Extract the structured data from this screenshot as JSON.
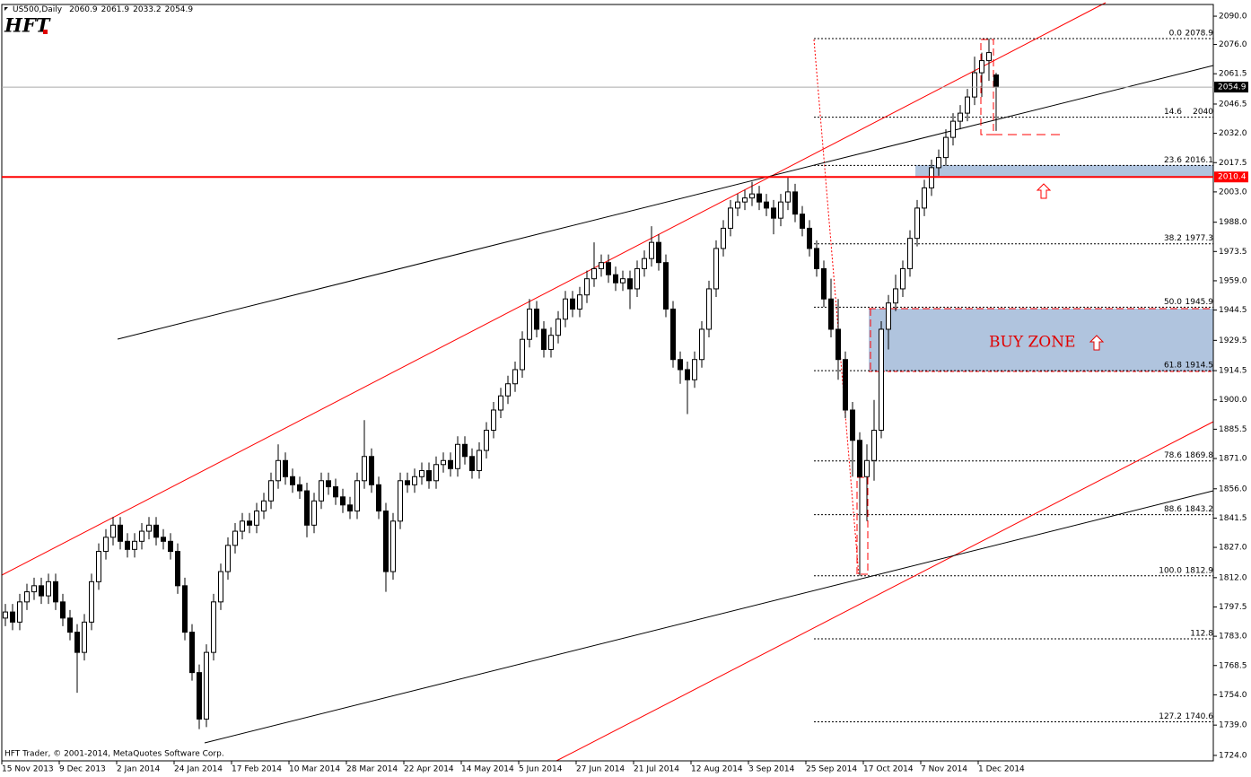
{
  "header": {
    "symbol": "US500,Daily"
  },
  "logo": "HFT",
  "footer": "HFT Trader, © 2001-2014, MetaQuotes Software Corp.",
  "chart_data": {
    "type": "candlestick",
    "up_color": "#ffffff",
    "down_color": "#000000",
    "grid": false,
    "ylim": [
      1721.3,
      2095.8
    ],
    "yticks": [
      {
        "value": 2090,
        "label": "2090.0"
      },
      {
        "value": 2076,
        "label": "2076.0"
      },
      2061.5,
      2046.5,
      {
        "value": 2032,
        "label": "2032.0"
      },
      2017.5,
      {
        "value": 2003,
        "label": "2003.0"
      },
      {
        "value": 1988,
        "label": "1988.0"
      },
      1973.5,
      {
        "value": 1959,
        "label": "1959.0"
      },
      1944.5,
      1929.5,
      1914.5,
      {
        "value": 1900,
        "label": "1900.0"
      },
      1885.5,
      {
        "value": 1871,
        "label": "1871.0"
      },
      {
        "value": 1856,
        "label": "1856.0"
      },
      1841.5,
      {
        "value": 1827,
        "label": "1827.0"
      },
      {
        "value": 1812,
        "label": "1812.0"
      },
      1797.5,
      {
        "value": 1783,
        "label": "1783.0"
      },
      1768.5,
      {
        "value": 1754,
        "label": "1754.0"
      },
      {
        "value": 1739,
        "label": "1739.0"
      },
      {
        "value": 1724,
        "label": "1724.0"
      }
    ],
    "xticks": [
      {
        "value": 0,
        "label": "15 Nov 2013"
      },
      {
        "value": 8,
        "label": "9 Dec 2013"
      },
      {
        "value": 16,
        "label": "2 Jan 2014"
      },
      {
        "value": 24,
        "label": "24 Jan 2014"
      },
      {
        "value": 32,
        "label": "17 Feb 2014"
      },
      {
        "value": 40,
        "label": "10 Mar 2014"
      },
      {
        "value": 48,
        "label": "28 Mar 2014"
      },
      {
        "value": 56,
        "label": "22 Apr 2014"
      },
      {
        "value": 64,
        "label": "14 May 2014"
      },
      {
        "value": 72,
        "label": "5 Jun 2014"
      },
      {
        "value": 80,
        "label": "27 Jun 2014"
      },
      {
        "value": 88,
        "label": "21 Jul 2014"
      },
      {
        "value": 96,
        "label": "12 Aug 2014"
      },
      {
        "value": 104,
        "label": "3 Sep 2014"
      },
      {
        "value": 112,
        "label": "25 Sep 2014"
      },
      {
        "value": 120,
        "label": "17 Oct 2014"
      },
      {
        "value": 128,
        "label": "7 Nov 2014"
      },
      {
        "value": 136,
        "label": "1 Dec 2014"
      }
    ],
    "hline": {
      "value": 2010.4,
      "color": "#ff0000"
    },
    "fib_levels": [
      {
        "level": "0.0",
        "value": 2078.9,
        "value_printed": true
      },
      {
        "level": "14.6",
        "value": 2040.0,
        "value_printed": true
      },
      {
        "level": "23.6",
        "value": 2016.1,
        "value_printed": true
      },
      {
        "level": "38.2",
        "value": 1977.3,
        "value_printed": true
      },
      {
        "level": "50.0",
        "value": 1945.9,
        "value_printed": true
      },
      {
        "level": "61.8",
        "value": 1914.5,
        "value_printed": true
      },
      {
        "level": "78.6",
        "value": 1869.8,
        "value_printed": true
      },
      {
        "level": "88.6",
        "value": 1843.2,
        "value_printed": true
      },
      {
        "level": "100.0",
        "value": 1812.9,
        "value_printed": true
      },
      {
        "level": "112.8",
        "value": 1781.7,
        "value_printed": false
      },
      {
        "level": "127.2",
        "value": 1740.6,
        "value_printed": true
      }
    ],
    "buy_zone_label": "BUY ZONE",
    "ohlc": [
      [
        1792,
        1799,
        1788,
        1795
      ],
      [
        1795,
        1799,
        1786,
        1790
      ],
      [
        1790,
        1804,
        1786,
        1800
      ],
      [
        1800,
        1809,
        1796,
        1805
      ],
      [
        1805,
        1812,
        1801,
        1808
      ],
      [
        1808,
        1812,
        1799,
        1803
      ],
      [
        1803,
        1814,
        1799,
        1810
      ],
      [
        1810,
        1814,
        1796,
        1800
      ],
      [
        1800,
        1804,
        1788,
        1792
      ],
      [
        1792,
        1796,
        1781,
        1785
      ],
      [
        1785,
        1789,
        1755,
        1775
      ],
      [
        1775,
        1794,
        1771,
        1790
      ],
      [
        1790,
        1814,
        1786,
        1810
      ],
      [
        1810,
        1829,
        1806,
        1825
      ],
      [
        1825,
        1836,
        1821,
        1832
      ],
      [
        1832,
        1842,
        1828,
        1838
      ],
      [
        1838,
        1842,
        1826,
        1830
      ],
      [
        1830,
        1834,
        1822,
        1826
      ],
      [
        1826,
        1834,
        1822,
        1830
      ],
      [
        1830,
        1839,
        1826,
        1835
      ],
      [
        1835,
        1842,
        1831,
        1838
      ],
      [
        1838,
        1842,
        1828,
        1832
      ],
      [
        1832,
        1836,
        1826,
        1830
      ],
      [
        1830,
        1834,
        1821,
        1825
      ],
      [
        1825,
        1829,
        1804,
        1808
      ],
      [
        1808,
        1812,
        1781,
        1785
      ],
      [
        1785,
        1789,
        1761,
        1765
      ],
      [
        1765,
        1769,
        1737,
        1742
      ],
      [
        1742,
        1779,
        1738,
        1775
      ],
      [
        1775,
        1804,
        1771,
        1800
      ],
      [
        1800,
        1819,
        1796,
        1815
      ],
      [
        1815,
        1832,
        1811,
        1828
      ],
      [
        1828,
        1839,
        1824,
        1835
      ],
      [
        1835,
        1844,
        1831,
        1840
      ],
      [
        1840,
        1844,
        1834,
        1838
      ],
      [
        1838,
        1849,
        1834,
        1845
      ],
      [
        1845,
        1854,
        1841,
        1850
      ],
      [
        1850,
        1864,
        1846,
        1860
      ],
      [
        1860,
        1878,
        1856,
        1870
      ],
      [
        1870,
        1874,
        1858,
        1862
      ],
      [
        1862,
        1866,
        1854,
        1858
      ],
      [
        1858,
        1862,
        1851,
        1855
      ],
      [
        1855,
        1859,
        1832,
        1838
      ],
      [
        1838,
        1854,
        1834,
        1850
      ],
      [
        1850,
        1864,
        1846,
        1860
      ],
      [
        1860,
        1864,
        1853,
        1857
      ],
      [
        1857,
        1861,
        1848,
        1852
      ],
      [
        1852,
        1856,
        1844,
        1848
      ],
      [
        1848,
        1852,
        1841,
        1845
      ],
      [
        1845,
        1864,
        1841,
        1860
      ],
      [
        1860,
        1890,
        1856,
        1872
      ],
      [
        1872,
        1876,
        1854,
        1858
      ],
      [
        1858,
        1862,
        1841,
        1845
      ],
      [
        1845,
        1849,
        1805,
        1815
      ],
      [
        1815,
        1844,
        1811,
        1840
      ],
      [
        1840,
        1864,
        1836,
        1860
      ],
      [
        1860,
        1864,
        1854,
        1858
      ],
      [
        1858,
        1866,
        1854,
        1862
      ],
      [
        1862,
        1869,
        1858,
        1865
      ],
      [
        1865,
        1869,
        1856,
        1860
      ],
      [
        1860,
        1872,
        1856,
        1868
      ],
      [
        1868,
        1874,
        1864,
        1870
      ],
      [
        1870,
        1874,
        1862,
        1866
      ],
      [
        1866,
        1882,
        1862,
        1878
      ],
      [
        1878,
        1882,
        1868,
        1872
      ],
      [
        1872,
        1876,
        1861,
        1865
      ],
      [
        1865,
        1879,
        1861,
        1875
      ],
      [
        1875,
        1889,
        1871,
        1885
      ],
      [
        1885,
        1899,
        1881,
        1895
      ],
      [
        1895,
        1906,
        1891,
        1902
      ],
      [
        1902,
        1912,
        1898,
        1908
      ],
      [
        1908,
        1919,
        1904,
        1915
      ],
      [
        1915,
        1934,
        1911,
        1930
      ],
      [
        1930,
        1950,
        1926,
        1945
      ],
      [
        1945,
        1949,
        1931,
        1935
      ],
      [
        1935,
        1939,
        1921,
        1925
      ],
      [
        1925,
        1936,
        1921,
        1932
      ],
      [
        1932,
        1944,
        1928,
        1940
      ],
      [
        1940,
        1954,
        1936,
        1950
      ],
      [
        1950,
        1954,
        1941,
        1945
      ],
      [
        1945,
        1956,
        1941,
        1952
      ],
      [
        1952,
        1964,
        1948,
        1960
      ],
      [
        1960,
        1978,
        1956,
        1965
      ],
      [
        1965,
        1972,
        1961,
        1968
      ],
      [
        1968,
        1972,
        1958,
        1962
      ],
      [
        1962,
        1966,
        1954,
        1958
      ],
      [
        1958,
        1964,
        1954,
        1960
      ],
      [
        1960,
        1964,
        1945,
        1955
      ],
      [
        1955,
        1969,
        1951,
        1965
      ],
      [
        1965,
        1974,
        1961,
        1970
      ],
      [
        1970,
        1986,
        1966,
        1978
      ],
      [
        1978,
        1982,
        1964,
        1968
      ],
      [
        1968,
        1972,
        1941,
        1945
      ],
      [
        1945,
        1949,
        1916,
        1920
      ],
      [
        1920,
        1924,
        1908,
        1915
      ],
      [
        1915,
        1919,
        1893,
        1910
      ],
      [
        1910,
        1924,
        1906,
        1920
      ],
      [
        1920,
        1939,
        1916,
        1935
      ],
      [
        1935,
        1959,
        1931,
        1955
      ],
      [
        1955,
        1979,
        1951,
        1975
      ],
      [
        1975,
        1989,
        1971,
        1985
      ],
      [
        1985,
        1999,
        1981,
        1995
      ],
      [
        1995,
        2002,
        1991,
        1998
      ],
      [
        1998,
        2004,
        1994,
        2000
      ],
      [
        2000,
        2008,
        1996,
        2002
      ],
      [
        2002,
        2006,
        1994,
        1998
      ],
      [
        1998,
        2002,
        1991,
        1995
      ],
      [
        1995,
        1999,
        1982,
        1990
      ],
      [
        1990,
        2002,
        1986,
        1998
      ],
      [
        1998,
        2010,
        1994,
        2003
      ],
      [
        2003,
        2007,
        1988,
        1992
      ],
      [
        1992,
        1996,
        1981,
        1985
      ],
      [
        1985,
        1989,
        1971,
        1975
      ],
      [
        1975,
        1979,
        1961,
        1965
      ],
      [
        1965,
        1969,
        1946,
        1950
      ],
      [
        1950,
        1960,
        1931,
        1935
      ],
      [
        1935,
        1950,
        1910,
        1920
      ],
      [
        1920,
        1924,
        1891,
        1895
      ],
      [
        1895,
        1899,
        1862,
        1880
      ],
      [
        1880,
        1884,
        1812.9,
        1862
      ],
      [
        1862,
        1878,
        1840,
        1870
      ],
      [
        1870,
        1900,
        1860,
        1885
      ],
      [
        1885,
        1939,
        1881,
        1935
      ],
      [
        1935,
        1952,
        1925,
        1948
      ],
      [
        1948,
        1962,
        1944,
        1955
      ],
      [
        1955,
        1969,
        1951,
        1965
      ],
      [
        1965,
        1984,
        1961,
        1980
      ],
      [
        1980,
        1999,
        1976,
        1995
      ],
      [
        1995,
        2009,
        1991,
        2005
      ],
      [
        2005,
        2019,
        2001,
        2015
      ],
      [
        2015,
        2024,
        2011,
        2020
      ],
      [
        2020,
        2034,
        2016,
        2030
      ],
      [
        2030,
        2042,
        2026,
        2038
      ],
      [
        2038,
        2046,
        2034,
        2042
      ],
      [
        2042,
        2054,
        2038,
        2050
      ],
      [
        2050,
        2070,
        2046,
        2062
      ],
      [
        2062,
        2072,
        2050,
        2068
      ],
      [
        2068,
        2078.9,
        2058,
        2072
      ],
      [
        2060.9,
        2061.9,
        2033.2,
        2054.9
      ]
    ]
  }
}
